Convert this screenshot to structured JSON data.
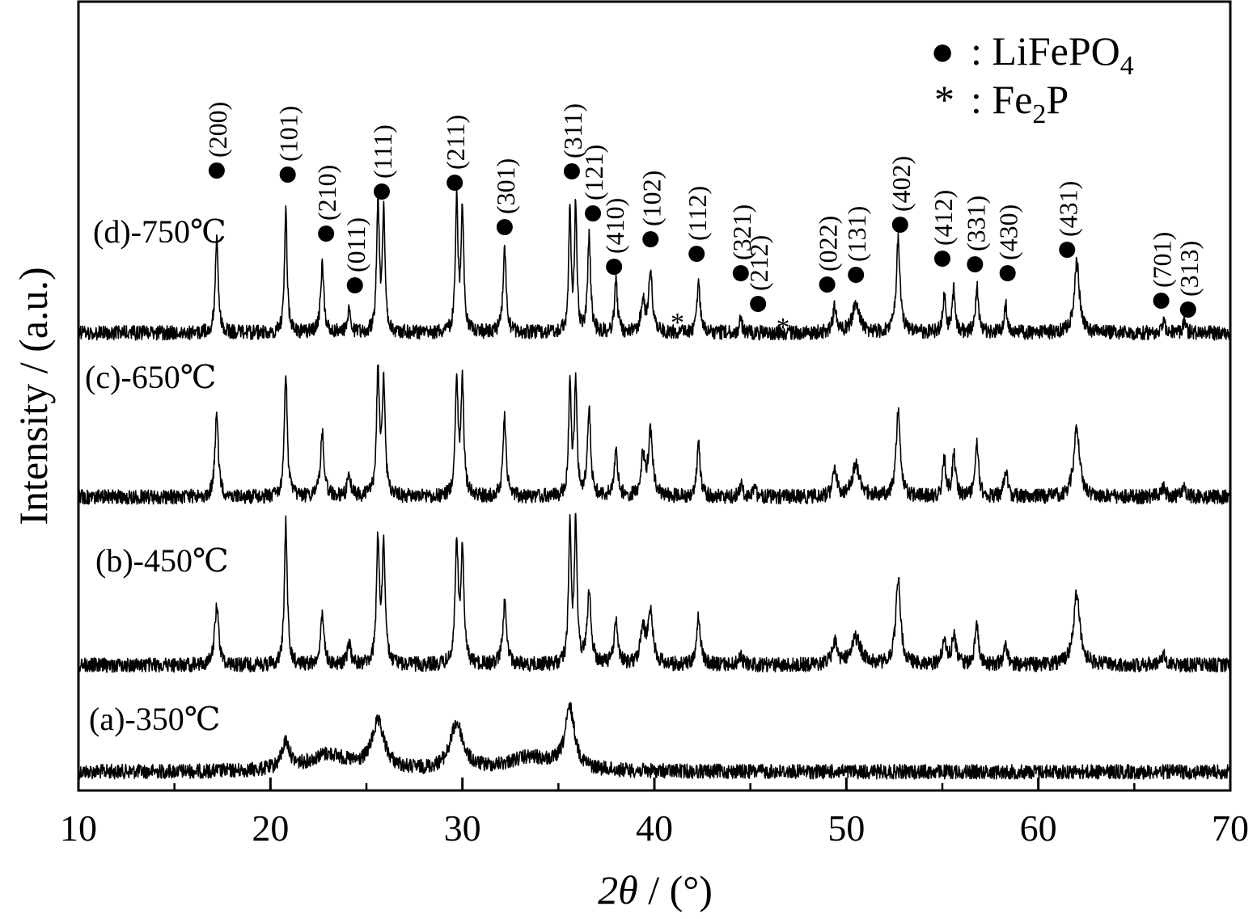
{
  "chart_data": {
    "type": "line",
    "title": "",
    "xlabel_symbol": "2θ",
    "xlabel_unit": " / (°)",
    "ylabel": "Intensity / (a.u.)",
    "xlim": [
      10,
      70
    ],
    "x_ticks": [
      "10",
      "20",
      "30",
      "40",
      "50",
      "60",
      "70"
    ],
    "grid": false,
    "legend_position": "top-right",
    "legend": [
      {
        "symbol": "●",
        "text_main": ": LiFePO",
        "text_sub": "4"
      },
      {
        "symbol": "*",
        "text_main": ": Fe",
        "text_sub": "2",
        "text_end": "P"
      }
    ],
    "series": [
      {
        "name": "(a)-350℃",
        "peaks": [
          {
            "x": 20.8,
            "h": 0.08,
            "w": 0.25
          },
          {
            "x": 25.6,
            "h": 0.14,
            "w": 0.4
          },
          {
            "x": 29.7,
            "h": 0.14,
            "w": 0.4
          },
          {
            "x": 35.6,
            "h": 0.18,
            "w": 0.3
          },
          {
            "x": 23.0,
            "h": 0.05,
            "w": 1.2
          },
          {
            "x": 33.5,
            "h": 0.04,
            "w": 1.5
          }
        ]
      },
      {
        "name": "(b)-450℃",
        "peaks": [
          {
            "x": 17.2,
            "h": 0.32,
            "w": 0.12
          },
          {
            "x": 20.8,
            "h": 0.75,
            "w": 0.09
          },
          {
            "x": 22.7,
            "h": 0.25,
            "w": 0.12
          },
          {
            "x": 24.1,
            "h": 0.12,
            "w": 0.1
          },
          {
            "x": 25.6,
            "h": 0.65,
            "w": 0.09
          },
          {
            "x": 25.9,
            "h": 0.62,
            "w": 0.09
          },
          {
            "x": 29.7,
            "h": 0.65,
            "w": 0.09
          },
          {
            "x": 30.0,
            "h": 0.62,
            "w": 0.09
          },
          {
            "x": 32.2,
            "h": 0.32,
            "w": 0.12
          },
          {
            "x": 35.6,
            "h": 0.72,
            "w": 0.08
          },
          {
            "x": 35.9,
            "h": 0.74,
            "w": 0.08
          },
          {
            "x": 36.6,
            "h": 0.38,
            "w": 0.12
          },
          {
            "x": 38.0,
            "h": 0.22,
            "w": 0.12
          },
          {
            "x": 39.4,
            "h": 0.18,
            "w": 0.15
          },
          {
            "x": 39.8,
            "h": 0.28,
            "w": 0.15
          },
          {
            "x": 42.3,
            "h": 0.25,
            "w": 0.12
          },
          {
            "x": 44.5,
            "h": 0.05,
            "w": 0.12
          },
          {
            "x": 49.4,
            "h": 0.12,
            "w": 0.15
          },
          {
            "x": 50.5,
            "h": 0.14,
            "w": 0.3
          },
          {
            "x": 52.7,
            "h": 0.45,
            "w": 0.15
          },
          {
            "x": 55.1,
            "h": 0.14,
            "w": 0.12
          },
          {
            "x": 55.6,
            "h": 0.16,
            "w": 0.12
          },
          {
            "x": 56.8,
            "h": 0.2,
            "w": 0.12
          },
          {
            "x": 58.3,
            "h": 0.1,
            "w": 0.12
          },
          {
            "x": 62.0,
            "h": 0.38,
            "w": 0.2
          },
          {
            "x": 66.5,
            "h": 0.05,
            "w": 0.2
          }
        ]
      },
      {
        "name": "(c)-650℃",
        "peaks": [
          {
            "x": 17.2,
            "h": 0.55,
            "w": 0.1
          },
          {
            "x": 20.8,
            "h": 0.78,
            "w": 0.09
          },
          {
            "x": 22.7,
            "h": 0.4,
            "w": 0.11
          },
          {
            "x": 24.1,
            "h": 0.15,
            "w": 0.1
          },
          {
            "x": 25.6,
            "h": 0.78,
            "w": 0.09
          },
          {
            "x": 25.9,
            "h": 0.7,
            "w": 0.09
          },
          {
            "x": 29.7,
            "h": 0.7,
            "w": 0.09
          },
          {
            "x": 30.0,
            "h": 0.7,
            "w": 0.09
          },
          {
            "x": 32.2,
            "h": 0.5,
            "w": 0.1
          },
          {
            "x": 35.6,
            "h": 0.7,
            "w": 0.08
          },
          {
            "x": 35.9,
            "h": 0.72,
            "w": 0.08
          },
          {
            "x": 36.6,
            "h": 0.55,
            "w": 0.1
          },
          {
            "x": 38.0,
            "h": 0.3,
            "w": 0.1
          },
          {
            "x": 39.4,
            "h": 0.25,
            "w": 0.12
          },
          {
            "x": 39.8,
            "h": 0.4,
            "w": 0.14
          },
          {
            "x": 42.3,
            "h": 0.35,
            "w": 0.1
          },
          {
            "x": 44.5,
            "h": 0.08,
            "w": 0.1
          },
          {
            "x": 45.2,
            "h": 0.06,
            "w": 0.1
          },
          {
            "x": 49.4,
            "h": 0.18,
            "w": 0.12
          },
          {
            "x": 50.5,
            "h": 0.2,
            "w": 0.25
          },
          {
            "x": 52.7,
            "h": 0.55,
            "w": 0.13
          },
          {
            "x": 55.1,
            "h": 0.24,
            "w": 0.1
          },
          {
            "x": 55.6,
            "h": 0.26,
            "w": 0.1
          },
          {
            "x": 56.8,
            "h": 0.35,
            "w": 0.1
          },
          {
            "x": 58.3,
            "h": 0.18,
            "w": 0.1
          },
          {
            "x": 62.0,
            "h": 0.45,
            "w": 0.18
          },
          {
            "x": 66.5,
            "h": 0.06,
            "w": 0.15
          },
          {
            "x": 67.6,
            "h": 0.06,
            "w": 0.12
          }
        ]
      },
      {
        "name": "(d)-750℃",
        "peaks": [
          {
            "x": 17.2,
            "h": 0.45,
            "w": 0.09
          },
          {
            "x": 20.8,
            "h": 0.6,
            "w": 0.08
          },
          {
            "x": 22.7,
            "h": 0.32,
            "w": 0.1
          },
          {
            "x": 24.1,
            "h": 0.12,
            "w": 0.09
          },
          {
            "x": 25.6,
            "h": 0.62,
            "w": 0.08
          },
          {
            "x": 25.9,
            "h": 0.58,
            "w": 0.08
          },
          {
            "x": 29.7,
            "h": 0.62,
            "w": 0.08
          },
          {
            "x": 30.0,
            "h": 0.58,
            "w": 0.08
          },
          {
            "x": 32.2,
            "h": 0.4,
            "w": 0.1
          },
          {
            "x": 35.6,
            "h": 0.6,
            "w": 0.07
          },
          {
            "x": 35.9,
            "h": 0.62,
            "w": 0.07
          },
          {
            "x": 36.6,
            "h": 0.46,
            "w": 0.09
          },
          {
            "x": 38.0,
            "h": 0.24,
            "w": 0.09
          },
          {
            "x": 39.4,
            "h": 0.16,
            "w": 0.11
          },
          {
            "x": 39.8,
            "h": 0.28,
            "w": 0.12
          },
          {
            "x": 42.3,
            "h": 0.25,
            "w": 0.09
          },
          {
            "x": 44.5,
            "h": 0.06,
            "w": 0.09
          },
          {
            "x": 49.4,
            "h": 0.12,
            "w": 0.11
          },
          {
            "x": 50.5,
            "h": 0.14,
            "w": 0.22
          },
          {
            "x": 52.7,
            "h": 0.44,
            "w": 0.12
          },
          {
            "x": 55.1,
            "h": 0.18,
            "w": 0.09
          },
          {
            "x": 55.6,
            "h": 0.2,
            "w": 0.09
          },
          {
            "x": 56.8,
            "h": 0.22,
            "w": 0.09
          },
          {
            "x": 58.3,
            "h": 0.13,
            "w": 0.09
          },
          {
            "x": 62.0,
            "h": 0.34,
            "w": 0.16
          },
          {
            "x": 66.5,
            "h": 0.05,
            "w": 0.13
          },
          {
            "x": 67.6,
            "h": 0.05,
            "w": 0.1
          }
        ]
      }
    ],
    "peak_annotations": [
      {
        "label": "(200)",
        "x": 17.2,
        "marker": "●"
      },
      {
        "label": "(101)",
        "x": 20.9,
        "marker": "●"
      },
      {
        "label": "(210)",
        "x": 22.9,
        "marker": "●"
      },
      {
        "label": "(011)",
        "x": 24.4,
        "marker": "●"
      },
      {
        "label": "(111)",
        "x": 25.8,
        "marker": "●"
      },
      {
        "label": "(211)",
        "x": 29.6,
        "marker": "●"
      },
      {
        "label": "(301)",
        "x": 32.2,
        "marker": "●"
      },
      {
        "label": "(311)",
        "x": 35.7,
        "marker": "●"
      },
      {
        "label": "(121)",
        "x": 36.8,
        "marker": "●"
      },
      {
        "label": "(410)",
        "x": 37.9,
        "marker": "●"
      },
      {
        "label": "(102)",
        "x": 39.8,
        "marker": "●"
      },
      {
        "label": "",
        "x": 41.2,
        "marker": "*"
      },
      {
        "label": "(112)",
        "x": 42.2,
        "marker": "●"
      },
      {
        "label": "(321)",
        "x": 44.5,
        "marker": "●"
      },
      {
        "label": "(212)",
        "x": 45.4,
        "marker": "●"
      },
      {
        "label": "",
        "x": 46.7,
        "marker": "*"
      },
      {
        "label": "(022)",
        "x": 49.0,
        "marker": "●"
      },
      {
        "label": "(131)",
        "x": 50.5,
        "marker": "●"
      },
      {
        "label": "(402)",
        "x": 52.8,
        "marker": "●"
      },
      {
        "label": "(412)",
        "x": 55.0,
        "marker": "●"
      },
      {
        "label": "(331)",
        "x": 56.7,
        "marker": "●"
      },
      {
        "label": "(430)",
        "x": 58.4,
        "marker": "●"
      },
      {
        "label": "(431)",
        "x": 61.5,
        "marker": "●"
      },
      {
        "label": "(701)",
        "x": 66.4,
        "marker": "●"
      },
      {
        "label": "(313)",
        "x": 67.8,
        "marker": "●"
      }
    ]
  }
}
